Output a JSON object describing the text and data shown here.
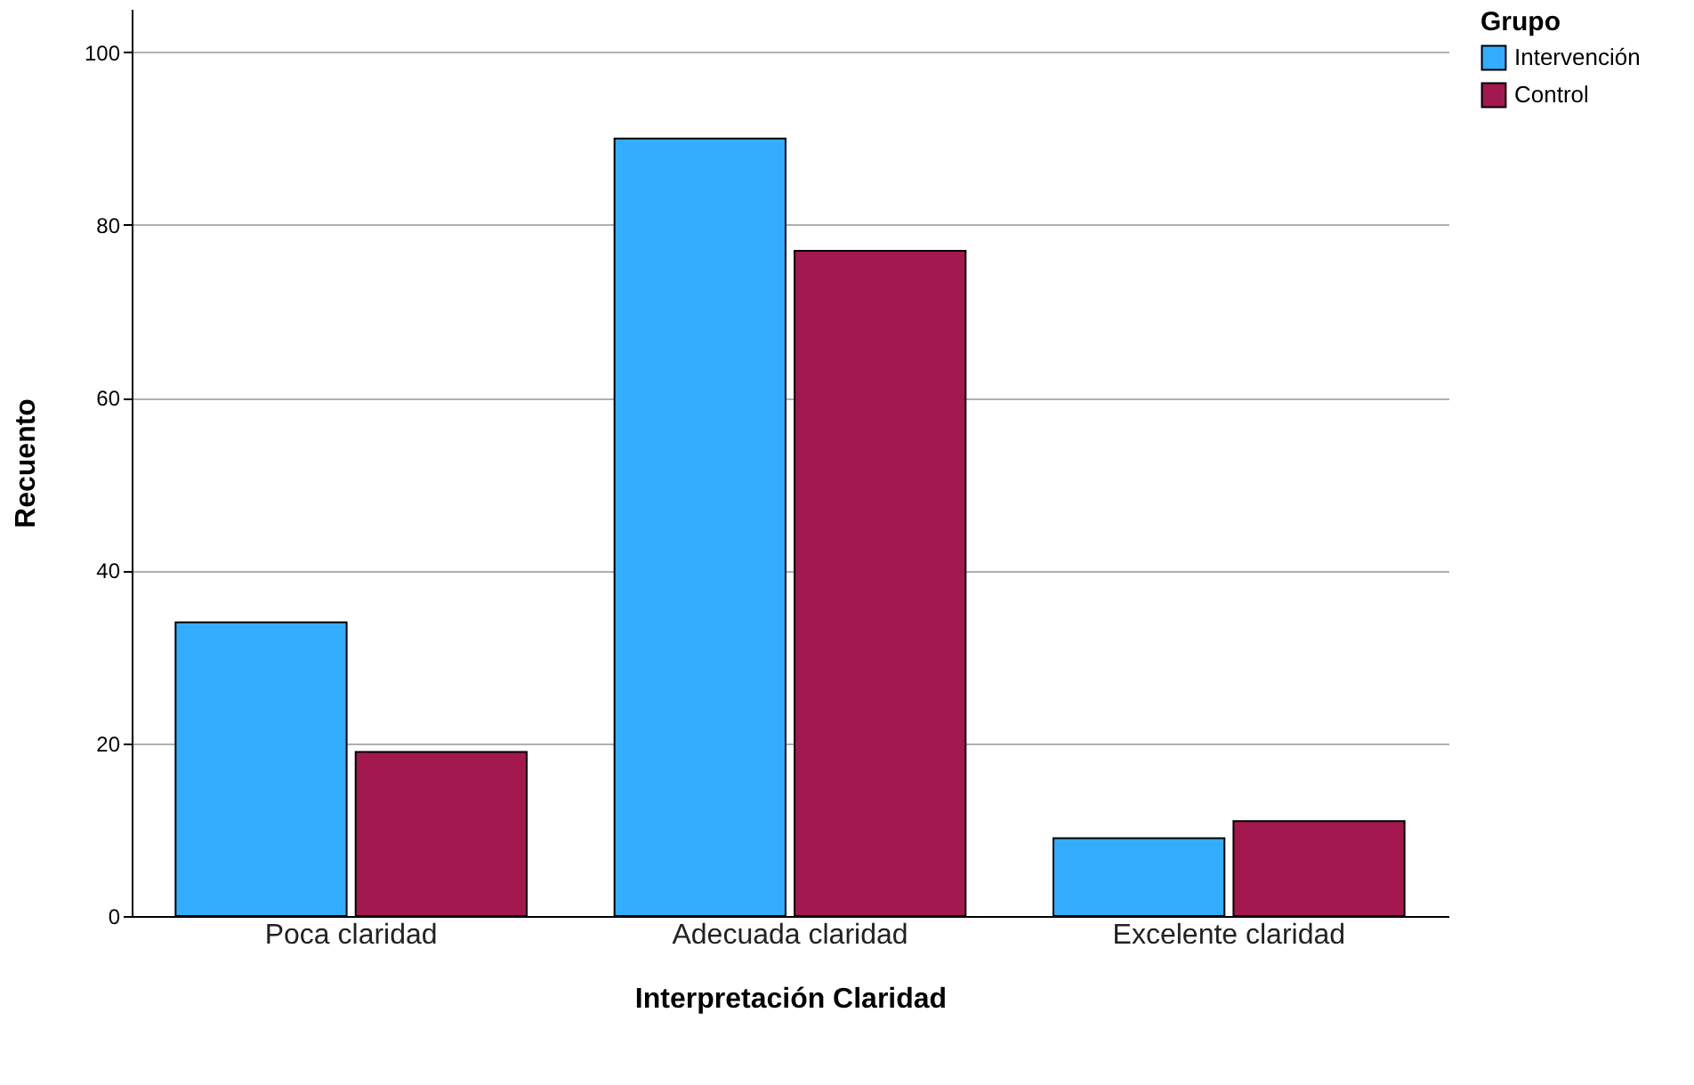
{
  "chart_data": {
    "type": "bar",
    "xlabel": "Interpretación Claridad",
    "ylabel": "Recuento",
    "legend_title": "Grupo",
    "categories": [
      "Poca claridad",
      "Adecuada claridad",
      "Excelente claridad"
    ],
    "series": [
      {
        "name": "Intervención",
        "color": "#33adff",
        "values": [
          34,
          90,
          9
        ]
      },
      {
        "name": "Control",
        "color": "#a3184f",
        "values": [
          19,
          77,
          11
        ]
      }
    ],
    "ylim": [
      0,
      105
    ],
    "yticks": [
      0,
      20,
      40,
      60,
      80,
      100
    ],
    "grid": "y",
    "legend": "top right"
  }
}
